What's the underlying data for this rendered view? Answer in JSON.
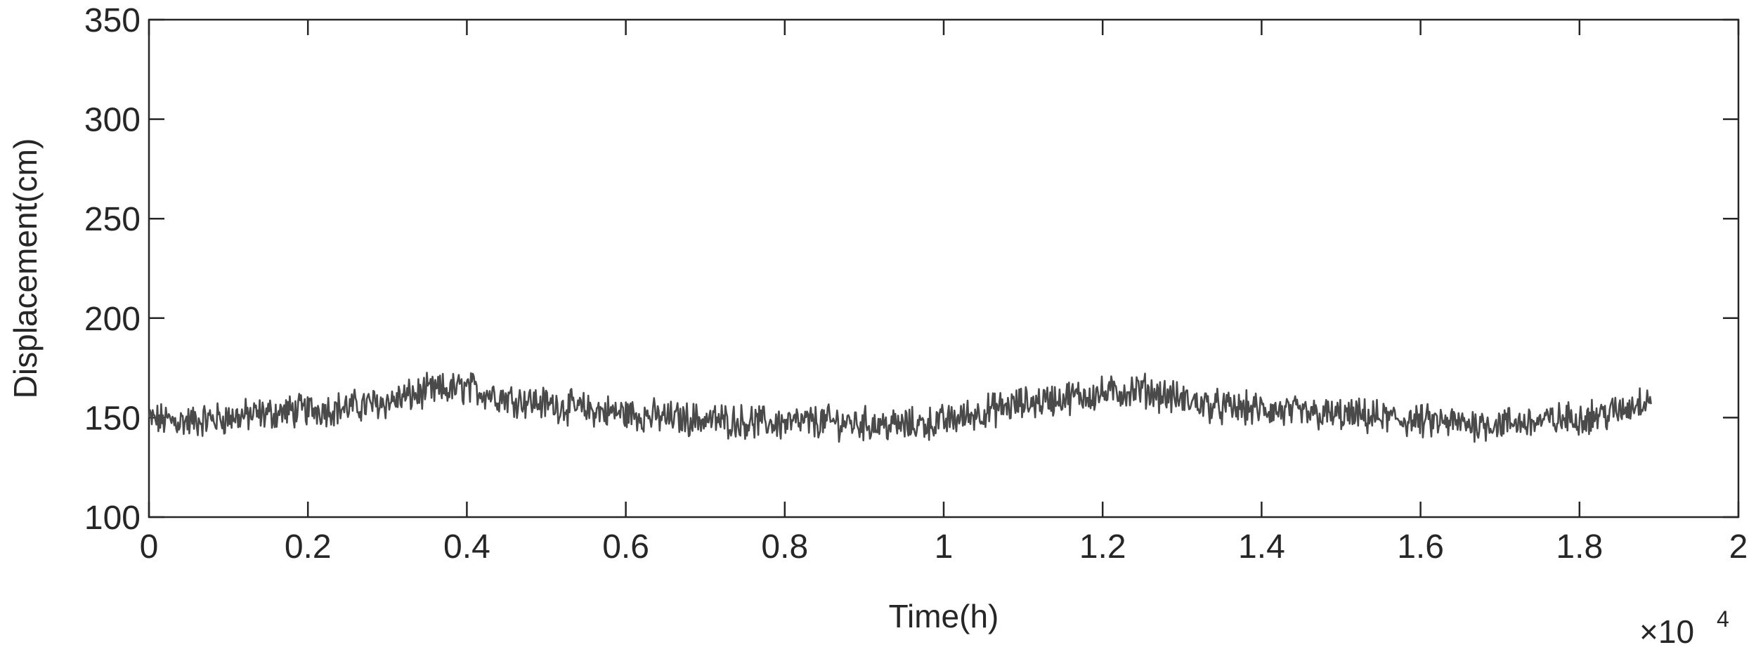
{
  "chart_data": {
    "type": "line",
    "xlabel": "Time(h)",
    "ylabel": "Displacement(cm)",
    "xlim": [
      0,
      2
    ],
    "ylim": [
      100,
      350
    ],
    "x_multiplier_label": "×10",
    "x_multiplier_exponent": "4",
    "x_ticks": [
      0,
      0.2,
      0.4,
      0.6,
      0.8,
      1,
      1.2,
      1.4,
      1.6,
      1.8,
      2
    ],
    "x_tick_labels": [
      "0",
      "0.2",
      "0.4",
      "0.6",
      "0.8",
      "1",
      "1.2",
      "1.4",
      "1.6",
      "1.8",
      "2"
    ],
    "y_ticks": [
      100,
      150,
      200,
      250,
      300,
      350
    ],
    "y_tick_labels": [
      "100",
      "150",
      "200",
      "250",
      "300",
      "350"
    ],
    "grid": false,
    "line_color": "#4a4a4a",
    "series": [
      {
        "x": [
          0,
          0.05,
          0.1,
          0.15,
          0.2,
          0.25,
          0.3,
          0.35,
          0.4,
          0.45,
          0.5,
          0.55,
          0.6,
          0.65,
          0.7,
          0.75,
          0.8,
          0.85,
          0.9,
          0.95,
          1.0,
          1.05,
          1.1,
          1.15,
          1.2,
          1.25,
          1.3,
          1.35,
          1.4,
          1.45,
          1.5,
          1.55,
          1.6,
          1.65,
          1.7,
          1.75,
          1.8,
          1.85,
          1.89
        ],
        "values": [
          149,
          148,
          150,
          152,
          154,
          155,
          158,
          163,
          165,
          160,
          157,
          154,
          152,
          150,
          149,
          148,
          147,
          148,
          147,
          146,
          148,
          153,
          157,
          160,
          162,
          164,
          159,
          155,
          154,
          152,
          151,
          150,
          148,
          147,
          147,
          148,
          150,
          153,
          161
        ]
      }
    ]
  }
}
